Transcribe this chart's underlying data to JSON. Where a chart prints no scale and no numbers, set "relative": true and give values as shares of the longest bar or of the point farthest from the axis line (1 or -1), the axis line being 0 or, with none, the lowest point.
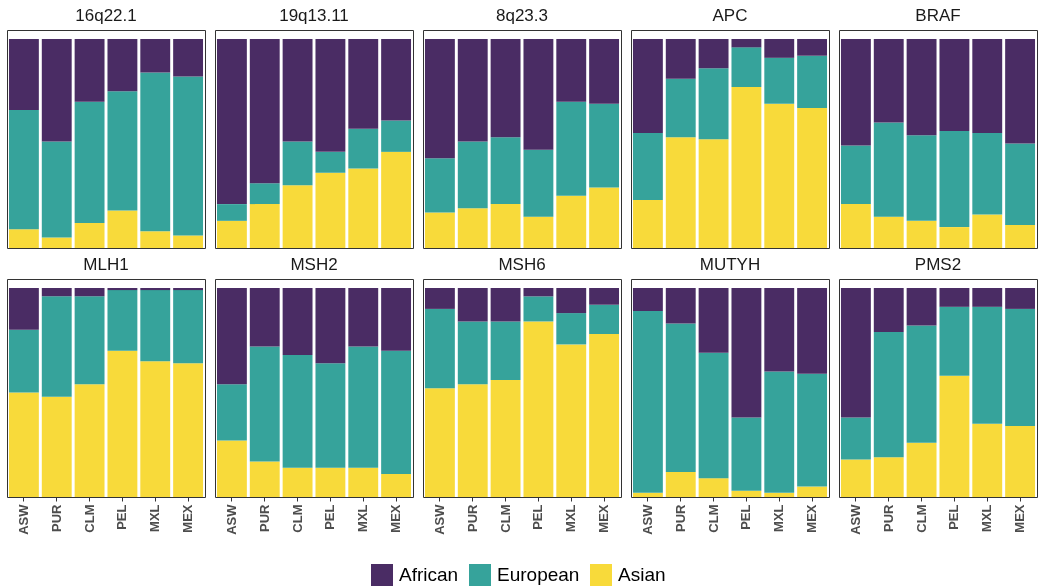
{
  "chart_data": [
    {
      "type": "bar",
      "title": "16q22.1",
      "stacked": true,
      "relative": true,
      "tick_labels": false,
      "legend": "bottom",
      "categories": [
        "ASW",
        "PUR",
        "CLM",
        "PEL",
        "MXL",
        "MEX"
      ],
      "series": [
        {
          "name": "Asian",
          "color": "#f8da3a",
          "values": [
            0.09,
            0.05,
            0.12,
            0.18,
            0.08,
            0.06
          ]
        },
        {
          "name": "European",
          "color": "#36a39b",
          "values": [
            0.57,
            0.46,
            0.58,
            0.57,
            0.76,
            0.76
          ]
        },
        {
          "name": "African",
          "color": "#4a2c64",
          "values": [
            0.34,
            0.49,
            0.3,
            0.25,
            0.16,
            0.18
          ]
        }
      ]
    },
    {
      "type": "bar",
      "title": "19q13.11",
      "stacked": true,
      "relative": true,
      "tick_labels": false,
      "legend": "bottom",
      "categories": [
        "ASW",
        "PUR",
        "CLM",
        "PEL",
        "MXL",
        "MEX"
      ],
      "series": [
        {
          "name": "Asian",
          "color": "#f8da3a",
          "values": [
            0.13,
            0.21,
            0.3,
            0.36,
            0.38,
            0.46
          ]
        },
        {
          "name": "European",
          "color": "#36a39b",
          "values": [
            0.08,
            0.1,
            0.21,
            0.1,
            0.19,
            0.15
          ]
        },
        {
          "name": "African",
          "color": "#4a2c64",
          "values": [
            0.79,
            0.69,
            0.49,
            0.54,
            0.43,
            0.39
          ]
        }
      ]
    },
    {
      "type": "bar",
      "title": "8q23.3",
      "stacked": true,
      "relative": true,
      "tick_labels": false,
      "legend": "bottom",
      "categories": [
        "ASW",
        "PUR",
        "CLM",
        "PEL",
        "MXL",
        "MEX"
      ],
      "series": [
        {
          "name": "Asian",
          "color": "#f8da3a",
          "values": [
            0.17,
            0.19,
            0.21,
            0.15,
            0.25,
            0.29
          ]
        },
        {
          "name": "European",
          "color": "#36a39b",
          "values": [
            0.26,
            0.32,
            0.32,
            0.32,
            0.45,
            0.4
          ]
        },
        {
          "name": "African",
          "color": "#4a2c64",
          "values": [
            0.57,
            0.49,
            0.47,
            0.53,
            0.3,
            0.31
          ]
        }
      ]
    },
    {
      "type": "bar",
      "title": "APC",
      "stacked": true,
      "relative": true,
      "tick_labels": false,
      "legend": "bottom",
      "categories": [
        "ASW",
        "PUR",
        "CLM",
        "PEL",
        "MXL",
        "MEX"
      ],
      "series": [
        {
          "name": "Asian",
          "color": "#f8da3a",
          "values": [
            0.23,
            0.53,
            0.52,
            0.77,
            0.69,
            0.67
          ]
        },
        {
          "name": "European",
          "color": "#36a39b",
          "values": [
            0.32,
            0.28,
            0.34,
            0.19,
            0.22,
            0.25
          ]
        },
        {
          "name": "African",
          "color": "#4a2c64",
          "values": [
            0.45,
            0.19,
            0.14,
            0.04,
            0.09,
            0.08
          ]
        }
      ]
    },
    {
      "type": "bar",
      "title": "BRAF",
      "stacked": true,
      "relative": true,
      "tick_labels": false,
      "legend": "bottom",
      "categories": [
        "ASW",
        "PUR",
        "CLM",
        "PEL",
        "MXL",
        "MEX"
      ],
      "series": [
        {
          "name": "Asian",
          "color": "#f8da3a",
          "values": [
            0.21,
            0.15,
            0.13,
            0.1,
            0.16,
            0.11
          ]
        },
        {
          "name": "European",
          "color": "#36a39b",
          "values": [
            0.28,
            0.45,
            0.41,
            0.46,
            0.39,
            0.39
          ]
        },
        {
          "name": "African",
          "color": "#4a2c64",
          "values": [
            0.51,
            0.4,
            0.46,
            0.44,
            0.45,
            0.5
          ]
        }
      ]
    },
    {
      "type": "bar",
      "title": "MLH1",
      "stacked": true,
      "relative": true,
      "tick_labels": "x",
      "legend": "bottom",
      "categories": [
        "ASW",
        "PUR",
        "CLM",
        "PEL",
        "MXL",
        "MEX"
      ],
      "series": [
        {
          "name": "Asian",
          "color": "#f8da3a",
          "values": [
            0.5,
            0.48,
            0.54,
            0.7,
            0.65,
            0.64
          ]
        },
        {
          "name": "European",
          "color": "#36a39b",
          "values": [
            0.3,
            0.48,
            0.42,
            0.29,
            0.34,
            0.35
          ]
        },
        {
          "name": "African",
          "color": "#4a2c64",
          "values": [
            0.2,
            0.04,
            0.04,
            0.01,
            0.01,
            0.01
          ]
        }
      ]
    },
    {
      "type": "bar",
      "title": "MSH2",
      "stacked": true,
      "relative": true,
      "tick_labels": "x",
      "legend": "bottom",
      "categories": [
        "ASW",
        "PUR",
        "CLM",
        "PEL",
        "MXL",
        "MEX"
      ],
      "series": [
        {
          "name": "Asian",
          "color": "#f8da3a",
          "values": [
            0.27,
            0.17,
            0.14,
            0.14,
            0.14,
            0.11
          ]
        },
        {
          "name": "European",
          "color": "#36a39b",
          "values": [
            0.27,
            0.55,
            0.54,
            0.5,
            0.58,
            0.59
          ]
        },
        {
          "name": "African",
          "color": "#4a2c64",
          "values": [
            0.46,
            0.28,
            0.32,
            0.36,
            0.28,
            0.3
          ]
        }
      ]
    },
    {
      "type": "bar",
      "title": "MSH6",
      "stacked": true,
      "relative": true,
      "tick_labels": "x",
      "legend": "bottom",
      "categories": [
        "ASW",
        "PUR",
        "CLM",
        "PEL",
        "MXL",
        "MEX"
      ],
      "series": [
        {
          "name": "Asian",
          "color": "#f8da3a",
          "values": [
            0.52,
            0.54,
            0.56,
            0.84,
            0.73,
            0.78
          ]
        },
        {
          "name": "European",
          "color": "#36a39b",
          "values": [
            0.38,
            0.3,
            0.28,
            0.12,
            0.15,
            0.14
          ]
        },
        {
          "name": "African",
          "color": "#4a2c64",
          "values": [
            0.1,
            0.16,
            0.16,
            0.04,
            0.12,
            0.08
          ]
        }
      ]
    },
    {
      "type": "bar",
      "title": "MUTYH",
      "stacked": true,
      "relative": true,
      "tick_labels": "x",
      "legend": "bottom",
      "categories": [
        "ASW",
        "PUR",
        "CLM",
        "PEL",
        "MXL",
        "MEX"
      ],
      "series": [
        {
          "name": "Asian",
          "color": "#f8da3a",
          "values": [
            0.02,
            0.12,
            0.09,
            0.03,
            0.02,
            0.05
          ]
        },
        {
          "name": "European",
          "color": "#36a39b",
          "values": [
            0.87,
            0.71,
            0.6,
            0.35,
            0.58,
            0.54
          ]
        },
        {
          "name": "African",
          "color": "#4a2c64",
          "values": [
            0.11,
            0.17,
            0.31,
            0.62,
            0.4,
            0.41
          ]
        }
      ]
    },
    {
      "type": "bar",
      "title": "PMS2",
      "stacked": true,
      "relative": true,
      "tick_labels": "x",
      "legend": "bottom",
      "categories": [
        "ASW",
        "PUR",
        "CLM",
        "PEL",
        "MXL",
        "MEX"
      ],
      "series": [
        {
          "name": "Asian",
          "color": "#f8da3a",
          "values": [
            0.18,
            0.19,
            0.26,
            0.58,
            0.35,
            0.34
          ]
        },
        {
          "name": "European",
          "color": "#36a39b",
          "values": [
            0.2,
            0.6,
            0.56,
            0.33,
            0.56,
            0.56
          ]
        },
        {
          "name": "African",
          "color": "#4a2c64",
          "values": [
            0.62,
            0.21,
            0.18,
            0.09,
            0.09,
            0.1
          ]
        }
      ]
    }
  ]
}
